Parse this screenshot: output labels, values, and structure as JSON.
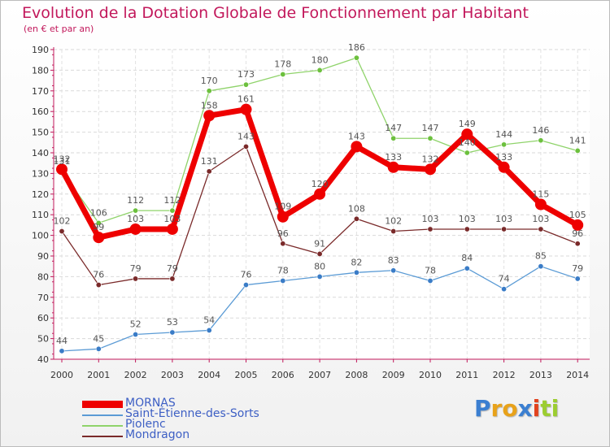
{
  "title": "Evolution de la Dotation Globale de Fonctionnement par Habitant",
  "subtitle": "(en € et par an)",
  "brand": {
    "letters": [
      "P",
      "r",
      "o",
      "x",
      "i",
      "t",
      "i"
    ],
    "colors": [
      "#3b7fd1",
      "#e8a21a",
      "#e8a21a",
      "#3b7fd1",
      "#e2431f",
      "#9ccd31",
      "#9ccd31"
    ]
  },
  "chart_data": {
    "type": "line",
    "categories": [
      "2000",
      "2001",
      "2002",
      "2003",
      "2004",
      "2005",
      "2006",
      "2007",
      "2008",
      "2009",
      "2010",
      "2011",
      "2012",
      "2013",
      "2014"
    ],
    "y_ticks": [
      "40",
      "50",
      "60",
      "70",
      "80",
      "90",
      "100",
      "110",
      "120",
      "130",
      "140",
      "150",
      "160",
      "170",
      "180",
      "190"
    ],
    "ylim": [
      40,
      190
    ],
    "grid": true,
    "legend_position": "bottom-left",
    "series": [
      {
        "name": "Saint-Étienne-des-Sorts",
        "color": "#5b9bd5",
        "marker_color": "#3a7cc7",
        "values": [
          44,
          45,
          52,
          53,
          54,
          76,
          78,
          80,
          82,
          83,
          78,
          84,
          74,
          85,
          79
        ],
        "labels": [
          "44",
          "45",
          "52",
          "53",
          "54",
          "76",
          "78",
          "80",
          "82",
          "83",
          "78",
          "84",
          "74",
          "85",
          "79"
        ]
      },
      {
        "name": "Piolenc",
        "color": "#8fd36a",
        "marker_color": "#6cc03d",
        "values": [
          131,
          106,
          112,
          112,
          170,
          173,
          178,
          180,
          186,
          147,
          147,
          140,
          144,
          146,
          141
        ],
        "labels": [
          "131",
          "106",
          "112",
          "112",
          "170",
          "173",
          "178",
          "180",
          "186",
          "147",
          "147",
          "140",
          "144",
          "146",
          "141"
        ]
      },
      {
        "name": "Mondragon",
        "color": "#7a2a2a",
        "marker_color": "#7a2a2a",
        "values": [
          102,
          76,
          79,
          79,
          131,
          143,
          96,
          91,
          108,
          102,
          103,
          103,
          103,
          103,
          96
        ],
        "labels": [
          "102",
          "76",
          "79",
          "79",
          "131",
          "143",
          "96",
          "91",
          "108",
          "102",
          "103",
          "103",
          "103",
          "103",
          "96"
        ]
      },
      {
        "name": "MORNAS",
        "color": "#ee0000",
        "marker_color": "#ee0000",
        "values": [
          132,
          99,
          103,
          103,
          158,
          161,
          109,
          120,
          143,
          133,
          132,
          149,
          133,
          115,
          105
        ],
        "labels": [
          "132",
          "99",
          "103",
          "103",
          "158",
          "161",
          "109",
          "120",
          "143",
          "133",
          "132",
          "149",
          "133",
          "115",
          "105"
        ]
      }
    ],
    "legend": [
      "MORNAS",
      "Saint-Étienne-des-Sorts",
      "Piolenc",
      "Mondragon"
    ]
  }
}
